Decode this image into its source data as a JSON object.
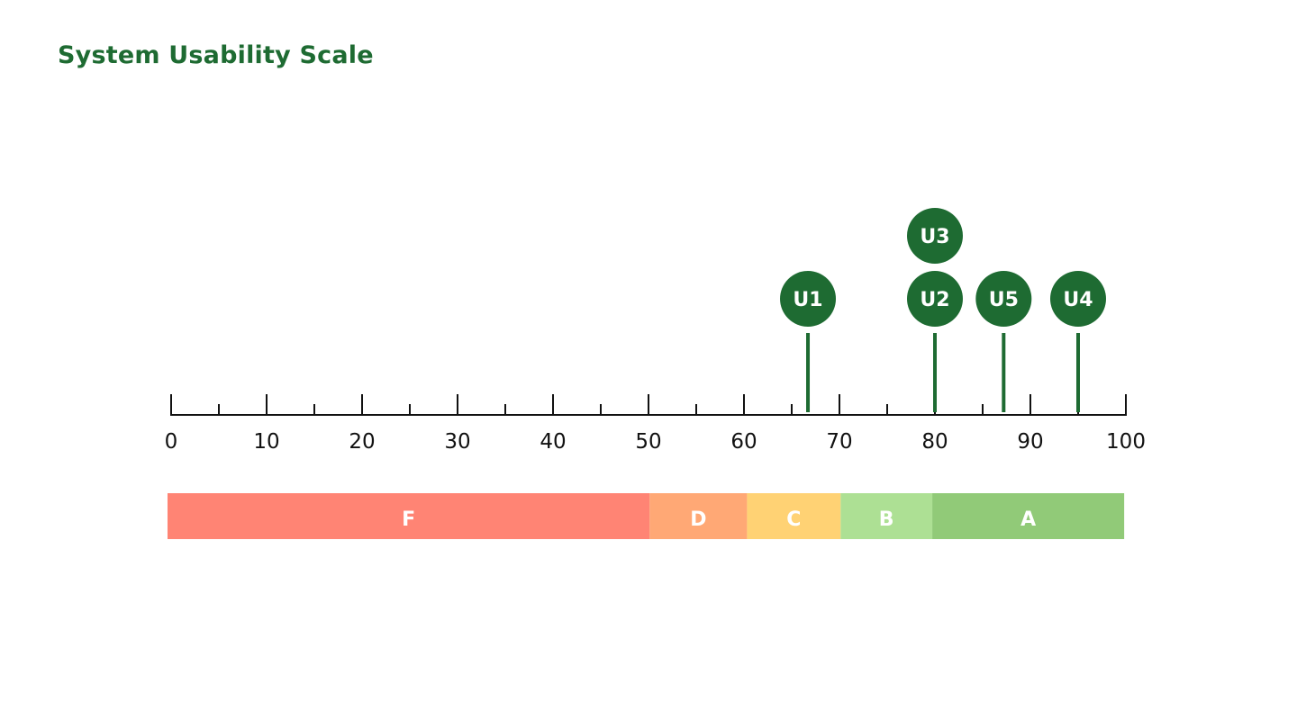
{
  "chart_data": {
    "type": "scatter",
    "title": "System Usability Scale",
    "xlim": [
      0,
      100
    ],
    "major_ticks": [
      0,
      10,
      20,
      30,
      40,
      50,
      60,
      70,
      80,
      90,
      100
    ],
    "minor_tick_step": 5,
    "tick_labels": [
      "0",
      "10",
      "20",
      "30",
      "40",
      "50",
      "60",
      "70",
      "80",
      "90",
      "100"
    ],
    "points": [
      {
        "label": "U1",
        "x": 66.7,
        "stack": 0,
        "stem": true
      },
      {
        "label": "U2",
        "x": 80,
        "stack": 0,
        "stem": true
      },
      {
        "label": "U3",
        "x": 80,
        "stack": 1,
        "stem": false
      },
      {
        "label": "U5",
        "x": 87.2,
        "stack": 0,
        "stem": true
      },
      {
        "label": "U4",
        "x": 95,
        "stack": 0,
        "stem": true
      }
    ],
    "grade_bands": [
      {
        "label": "F",
        "from": 0,
        "to": 50.5,
        "color": "#ff8474"
      },
      {
        "label": "D",
        "from": 50.5,
        "to": 60.7,
        "color": "#ffa875"
      },
      {
        "label": "C",
        "from": 60.7,
        "to": 70.5,
        "color": "#ffd274"
      },
      {
        "label": "B",
        "from": 70.5,
        "to": 80.1,
        "color": "#ade094"
      },
      {
        "label": "A",
        "from": 80.1,
        "to": 100.2,
        "color": "#91ca78"
      }
    ],
    "colors": {
      "title": "#1e6b32",
      "marker": "#1e6b32",
      "axis": "#111111"
    }
  }
}
